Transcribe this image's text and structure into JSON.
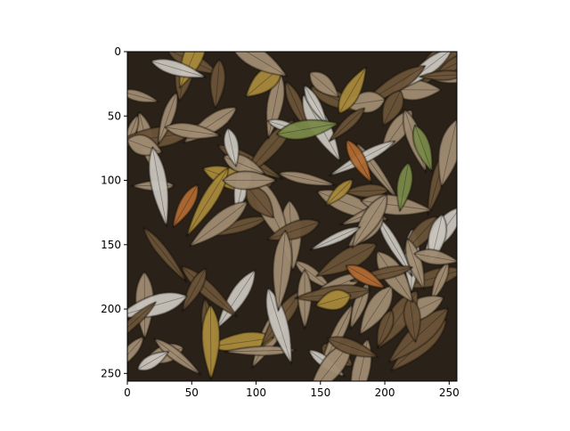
{
  "chart_data": {
    "type": "heatmap",
    "image_content": "dry fallen leaves (brown, tan, green, orange)",
    "x": {
      "ticks": [
        0,
        50,
        100,
        150,
        200,
        250
      ],
      "range": [
        0,
        256
      ]
    },
    "y": {
      "ticks": [
        0,
        50,
        100,
        150,
        200,
        250
      ],
      "range": [
        0,
        256
      ],
      "inverted": true
    },
    "colors": {
      "background": "#2a2219",
      "leaf_tan": "#a08c72",
      "leaf_brown": "#6b5238",
      "leaf_green": "#7a8a4a",
      "leaf_orange": "#b06a30",
      "leaf_pale": "#c9c5bd",
      "leaf_gold": "#a88a3a"
    }
  }
}
